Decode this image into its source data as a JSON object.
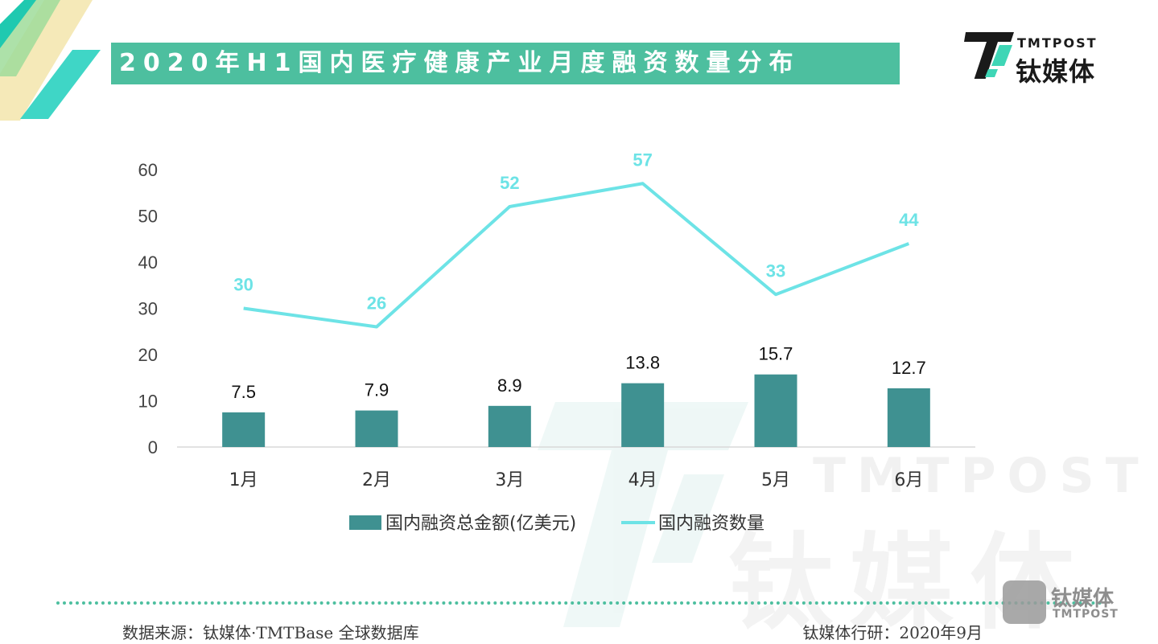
{
  "title": "2020年H1国内医疗健康产业月度融资数量分布",
  "logo": {
    "en": "TMTPOST",
    "cn": "钛媒体"
  },
  "watermark": {
    "en": "TMTPOST",
    "cn": "钛媒体"
  },
  "footer": {
    "source": "数据来源：钛媒体·TMTBase 全球数据库",
    "credit": "钛媒体行研：2020年9月"
  },
  "badge": {
    "cn": "钛媒体",
    "en": "TMTPOST"
  },
  "colors": {
    "bar": "#3f9191",
    "line": "#6de3e6",
    "title_bg": "#4dbf9f",
    "accent": "#4dbf9f"
  },
  "chart_data": {
    "type": "bar",
    "categories": [
      "1月",
      "2月",
      "3月",
      "4月",
      "5月",
      "6月"
    ],
    "series": [
      {
        "name": "国内融资总金额(亿美元)",
        "type": "bar",
        "values": [
          7.5,
          7.9,
          8.9,
          13.8,
          15.7,
          12.7
        ]
      },
      {
        "name": "国内融资数量",
        "type": "line",
        "values": [
          30,
          26,
          52,
          57,
          33,
          44
        ]
      }
    ],
    "bar_labels": [
      "7.5",
      "7.9",
      "8.9",
      "13.8",
      "15.7",
      "12.7"
    ],
    "line_labels": [
      "30",
      "26",
      "52",
      "57",
      "33",
      "44"
    ],
    "yticks": [
      "0",
      "10",
      "20",
      "30",
      "40",
      "50",
      "60"
    ],
    "ylim": [
      0,
      60
    ],
    "grid": false,
    "legend_position": "bottom"
  }
}
